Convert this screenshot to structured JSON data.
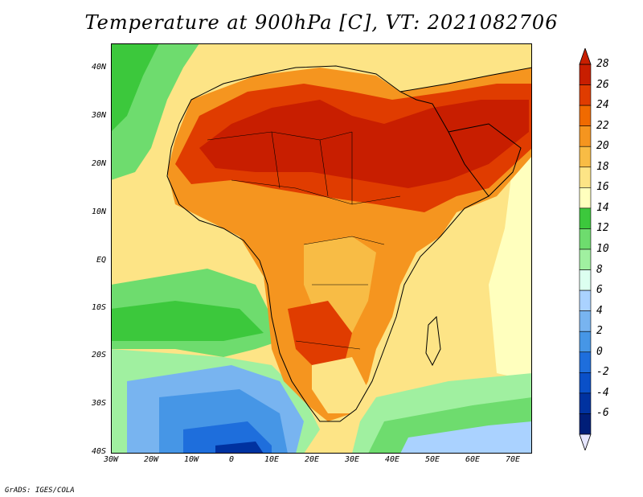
{
  "title": "Temperature at 900hPa [C], VT: 2021082706",
  "credit": "GrADS: IGES/COLA",
  "map": {
    "region": "Africa",
    "lat_labels": [
      "40N",
      "30N",
      "20N",
      "10N",
      "EQ",
      "10S",
      "20S",
      "30S",
      "40S"
    ],
    "lon_labels": [
      "30W",
      "20W",
      "10W",
      "0",
      "10E",
      "20E",
      "30E",
      "40E",
      "50E",
      "60E",
      "70E"
    ]
  },
  "colorbar": {
    "labels": [
      "28",
      "26",
      "24",
      "22",
      "20",
      "18",
      "16",
      "14",
      "12",
      "10",
      "8",
      "6",
      "4",
      "2",
      "0",
      "-2",
      "-4",
      "-6"
    ],
    "colors": [
      "#c81e00",
      "#e03c00",
      "#f06a00",
      "#f5951f",
      "#f8bc45",
      "#fde486",
      "#ffffbe",
      "#3cc83c",
      "#6edc6e",
      "#a0f0a0",
      "#dcfff0",
      "#aad2ff",
      "#78b4f0",
      "#4696e6",
      "#1e6edc",
      "#0a50c8",
      "#0032a0",
      "#001e78"
    ],
    "top_triangle_color": "#c81e00",
    "bottom_triangle_color": "#e6e6ff"
  },
  "colors": {
    "ocean_warm": "#fde486",
    "ocean_mild": "#ffffbe",
    "land_hot": "#e03c00",
    "land_very_hot": "#c81e00",
    "ocean_cool": "#6edc6e",
    "ocean_cold": "#4696e6",
    "ocean_coldest": "#0032a0",
    "border": "#000000"
  }
}
